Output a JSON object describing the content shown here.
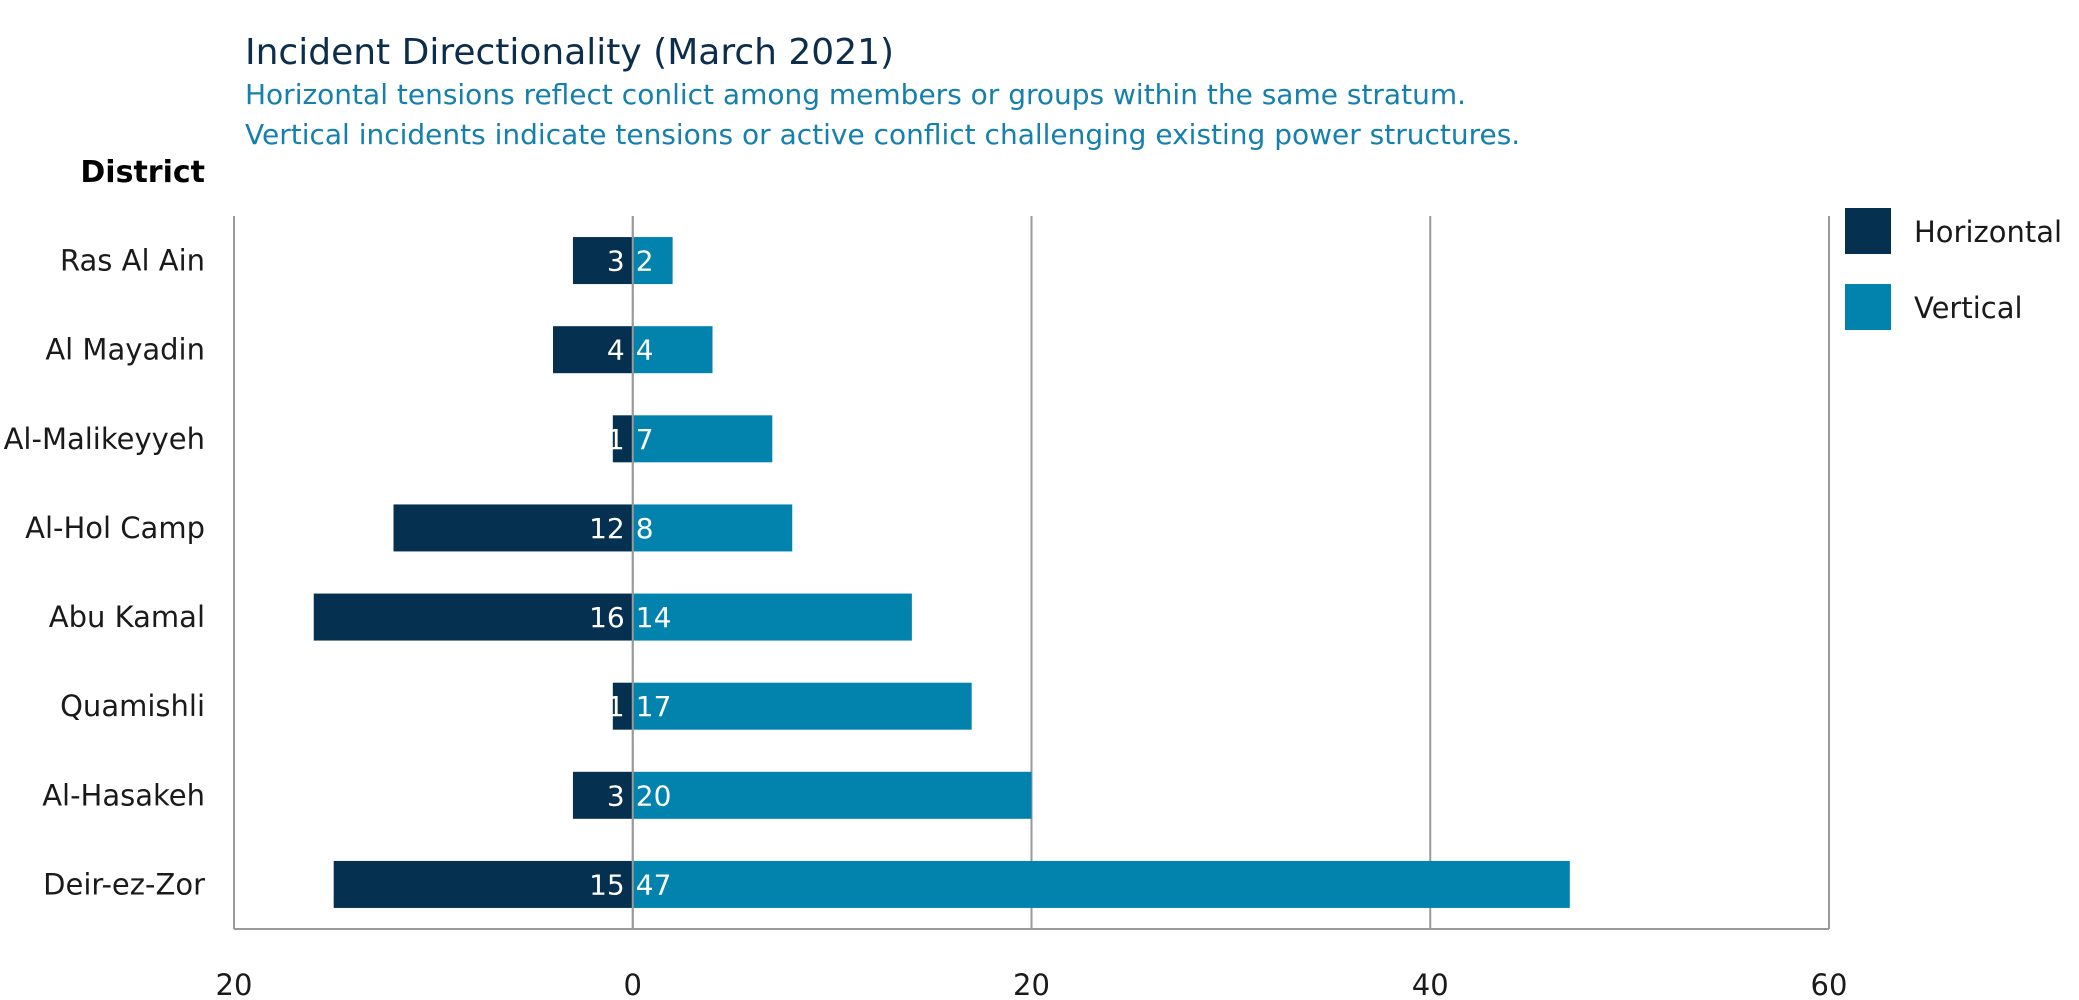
{
  "chart_data": {
    "type": "bar",
    "orientation": "horizontal",
    "layout": "diverging",
    "title": "Incident Directionality (March 2021)",
    "subtitle_lines": [
      "Horizontal tensions reflect conlict among members or groups within the same stratum.",
      "Vertical incidents indicate tensions or active conflict challenging existing power structures."
    ],
    "ylabel": "District",
    "categories": [
      "Ras Al Ain",
      "Al Mayadin",
      "Al-Malikeyyeh",
      "Al-Hol Camp",
      "Abu Kamal",
      "Quamishli",
      "Al-Hasakeh",
      "Deir-ez-Zor"
    ],
    "series": [
      {
        "name": "Horizontal",
        "values": [
          3,
          4,
          1,
          12,
          16,
          1,
          3,
          15
        ],
        "color": "#06304f",
        "direction": "left"
      },
      {
        "name": "Vertical",
        "values": [
          2,
          4,
          7,
          8,
          14,
          17,
          20,
          47
        ],
        "color": "#0283ad",
        "direction": "right"
      }
    ],
    "xlim": [
      -20,
      60
    ],
    "x_ticks": [
      -20,
      0,
      20,
      40,
      60
    ],
    "x_tick_labels": [
      "20",
      "0",
      "20",
      "40",
      "60"
    ],
    "grid": true,
    "data_labels": true,
    "legend_position": "top-right"
  }
}
